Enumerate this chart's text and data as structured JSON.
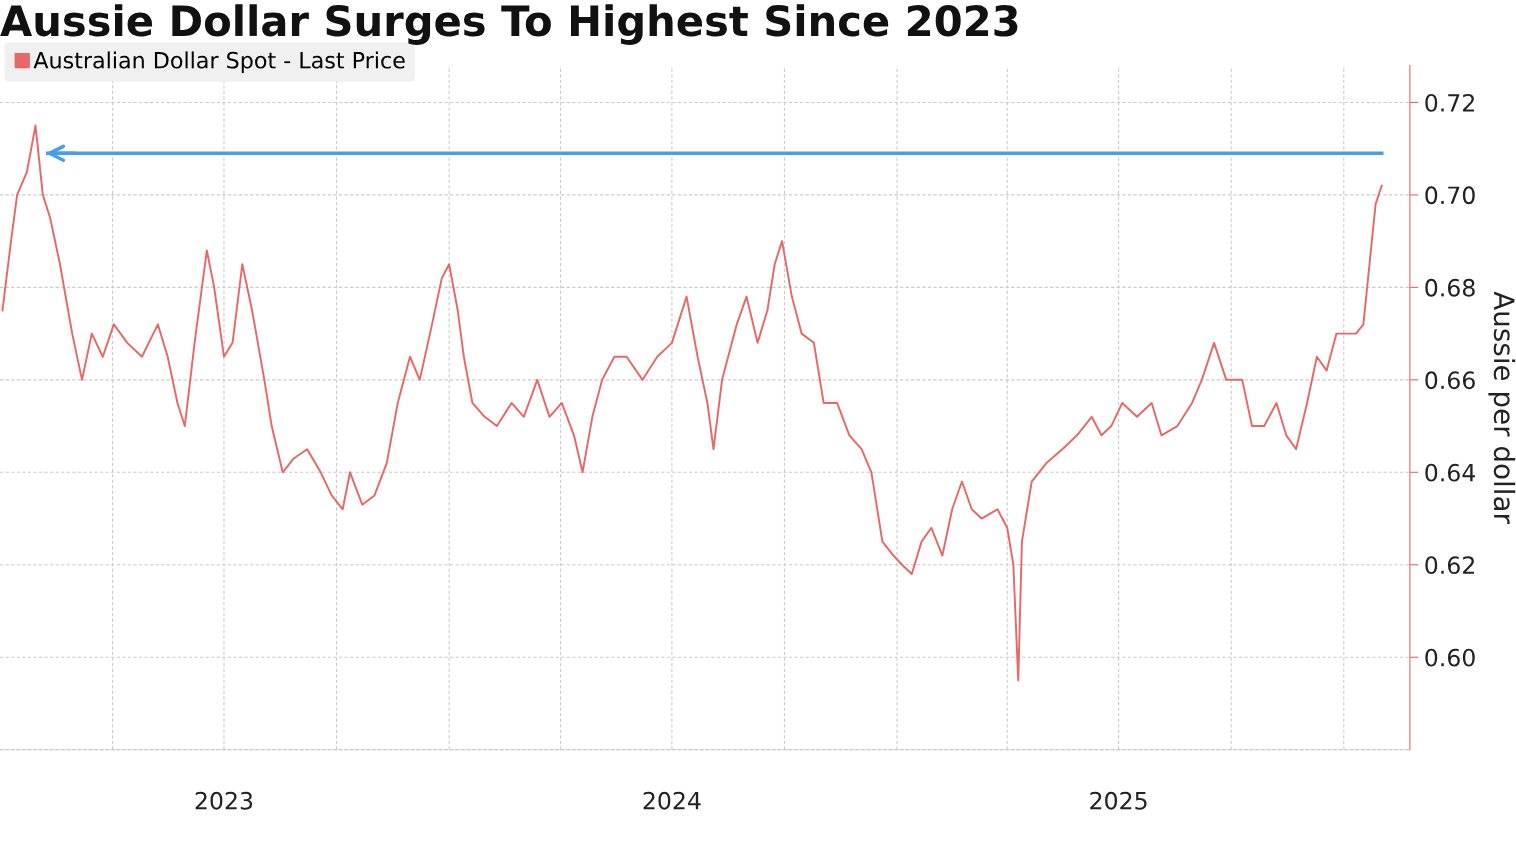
{
  "chart_data": {
    "type": "line",
    "title": "Aussie Dollar Surges To Highest Since 2023",
    "ylabel": "Aussie per dollar",
    "x": [
      "2023-01-01",
      "2023-01-08",
      "2023-01-13",
      "2023-01-21",
      "2023-01-28",
      "2023-02-03",
      "2023-02-09",
      "2023-02-17",
      "2023-02-27",
      "2023-03-07",
      "2023-03-15",
      "2023-03-24",
      "2023-04-02",
      "2023-04-13",
      "2023-04-25",
      "2023-05-08",
      "2023-05-16",
      "2023-05-24",
      "2023-05-30",
      "2023-06-07",
      "2023-06-17",
      "2023-06-23",
      "2023-07-01",
      "2023-07-08",
      "2023-07-16",
      "2023-07-24",
      "2023-08-03",
      "2023-08-09",
      "2023-08-18",
      "2023-08-27",
      "2023-09-07",
      "2023-09-18",
      "2023-09-27",
      "2023-10-06",
      "2023-10-12",
      "2023-10-22",
      "2023-11-01",
      "2023-11-11",
      "2023-11-20",
      "2023-11-30",
      "2023-12-08",
      "2023-12-18",
      "2023-12-26",
      "2024-01-01",
      "2024-01-08",
      "2024-01-13",
      "2024-01-20",
      "2024-01-30",
      "2024-02-09",
      "2024-02-21",
      "2024-03-02",
      "2024-03-13",
      "2024-03-23",
      "2024-04-02",
      "2024-04-12",
      "2024-04-19",
      "2024-04-27",
      "2024-05-05",
      "2024-05-15",
      "2024-05-25",
      "2024-06-07",
      "2024-06-19",
      "2024-07-01",
      "2024-07-13",
      "2024-07-22",
      "2024-07-30",
      "2024-08-04",
      "2024-08-11",
      "2024-08-23",
      "2024-08-31",
      "2024-09-09",
      "2024-09-17",
      "2024-09-23",
      "2024-09-29",
      "2024-10-07",
      "2024-10-15",
      "2024-10-25",
      "2024-11-02",
      "2024-11-13",
      "2024-11-23",
      "2024-12-03",
      "2024-12-11",
      "2024-12-20",
      "2024-12-29",
      "2025-01-05",
      "2025-01-13",
      "2025-01-21",
      "2025-01-29",
      "2025-02-07",
      "2025-02-15",
      "2025-02-23",
      "2025-03-03",
      "2025-03-11",
      "2025-03-24",
      "2025-04-01",
      "2025-04-06",
      "2025-04-10",
      "2025-04-13",
      "2025-04-21",
      "2025-05-03",
      "2025-05-16",
      "2025-05-28",
      "2025-06-09",
      "2025-06-17",
      "2025-06-25",
      "2025-07-04",
      "2025-07-16",
      "2025-07-28",
      "2025-08-05",
      "2025-08-18",
      "2025-08-30",
      "2025-09-07",
      "2025-09-17",
      "2025-09-27",
      "2025-10-10",
      "2025-10-18",
      "2025-10-28",
      "2025-11-07",
      "2025-11-15",
      "2025-11-23",
      "2025-12-02",
      "2025-12-10",
      "2025-12-18",
      "2025-12-26",
      "2026-01-03",
      "2026-01-11",
      "2026-01-17",
      "2026-01-22",
      "2026-01-27",
      "2026-02-01"
    ],
    "series": [
      {
        "name": "Australian Dollar Spot - Last Price",
        "color": "#e8686a",
        "values": [
          0.675,
          0.69,
          0.7,
          0.705,
          0.715,
          0.7,
          0.695,
          0.685,
          0.67,
          0.66,
          0.67,
          0.665,
          0.672,
          0.668,
          0.665,
          0.672,
          0.665,
          0.655,
          0.65,
          0.668,
          0.688,
          0.68,
          0.665,
          0.668,
          0.685,
          0.675,
          0.66,
          0.65,
          0.64,
          0.643,
          0.645,
          0.64,
          0.635,
          0.632,
          0.64,
          0.633,
          0.635,
          0.642,
          0.655,
          0.665,
          0.66,
          0.672,
          0.682,
          0.685,
          0.675,
          0.665,
          0.655,
          0.652,
          0.65,
          0.655,
          0.652,
          0.66,
          0.652,
          0.655,
          0.648,
          0.64,
          0.652,
          0.66,
          0.665,
          0.665,
          0.66,
          0.665,
          0.668,
          0.678,
          0.665,
          0.655,
          0.645,
          0.66,
          0.672,
          0.678,
          0.668,
          0.675,
          0.685,
          0.69,
          0.678,
          0.67,
          0.668,
          0.655,
          0.655,
          0.648,
          0.645,
          0.64,
          0.625,
          0.622,
          0.62,
          0.618,
          0.625,
          0.628,
          0.622,
          0.632,
          0.638,
          0.632,
          0.63,
          0.632,
          0.628,
          0.62,
          0.595,
          0.625,
          0.638,
          0.642,
          0.645,
          0.648,
          0.652,
          0.648,
          0.65,
          0.655,
          0.652,
          0.655,
          0.648,
          0.65,
          0.655,
          0.66,
          0.668,
          0.66,
          0.66,
          0.65,
          0.65,
          0.655,
          0.648,
          0.645,
          0.655,
          0.665,
          0.662,
          0.67,
          0.67,
          0.67,
          0.672,
          0.685,
          0.698,
          0.702
        ]
      }
    ],
    "xlim": [
      "2022-12-30",
      "2026-02-24"
    ],
    "xticks": [
      {
        "value": "2023-04-01",
        "label": null
      },
      {
        "value": "2023-07-01",
        "label": "2023"
      },
      {
        "value": "2023-10-01",
        "label": null
      },
      {
        "value": "2024-01-01",
        "label": null
      },
      {
        "value": "2024-04-01",
        "label": null
      },
      {
        "value": "2024-07-01",
        "label": "2024"
      },
      {
        "value": "2024-10-01",
        "label": null
      },
      {
        "value": "2025-01-01",
        "label": null
      },
      {
        "value": "2025-04-01",
        "label": null
      },
      {
        "value": "2025-07-01",
        "label": "2025"
      },
      {
        "value": "2025-10-01",
        "label": null
      },
      {
        "value": "2026-01-01",
        "label": null
      }
    ],
    "ylim": [
      0.58,
      0.728
    ],
    "yticks": [
      {
        "value": 0.6,
        "label": "0.60"
      },
      {
        "value": 0.62,
        "label": "0.62"
      },
      {
        "value": 0.64,
        "label": "0.64"
      },
      {
        "value": 0.66,
        "label": "0.66"
      },
      {
        "value": 0.68,
        "label": "0.68"
      },
      {
        "value": 0.7,
        "label": "0.70"
      },
      {
        "value": 0.72,
        "label": "0.72"
      }
    ],
    "ref_lines": [
      {
        "axis": "y",
        "value": 0.709,
        "color": "#4a9ee8"
      }
    ],
    "grid": true,
    "legend": "top left",
    "marker": "none",
    "line_style": "solid"
  }
}
